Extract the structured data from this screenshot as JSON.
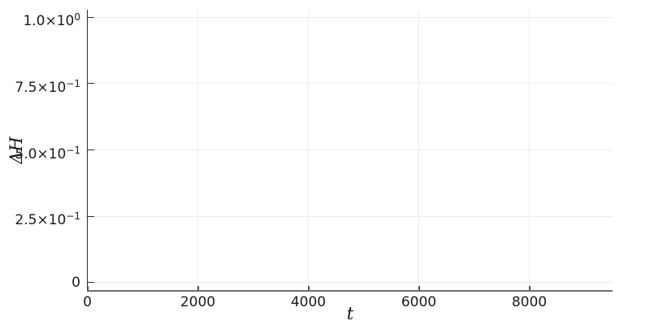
{
  "chart_data": {
    "type": "line",
    "title": "",
    "xlabel": "t",
    "ylabel": "ΔH",
    "xlim": [
      0,
      9500
    ],
    "ylim": [
      -0.031,
      1.028
    ],
    "xticks": {
      "values": [
        0,
        2000,
        4000,
        6000,
        8000
      ],
      "labels": [
        "0",
        "2000",
        "4000",
        "6000",
        "8000"
      ]
    },
    "yticks": {
      "values": [
        0,
        0.25,
        0.5,
        0.75,
        1.0
      ],
      "labels": [
        "0",
        "2.5×10^−1",
        "5.0×10^−1",
        "7.5×10^−1",
        "1.0×10^0"
      ]
    },
    "series": [],
    "grid": true,
    "legend": "none",
    "colors": {
      "background": "#ffffff",
      "grid": "#ececec",
      "axis": "#2e2e2e",
      "tick_text": "#1b1b1b",
      "label_text": "#111111"
    }
  }
}
